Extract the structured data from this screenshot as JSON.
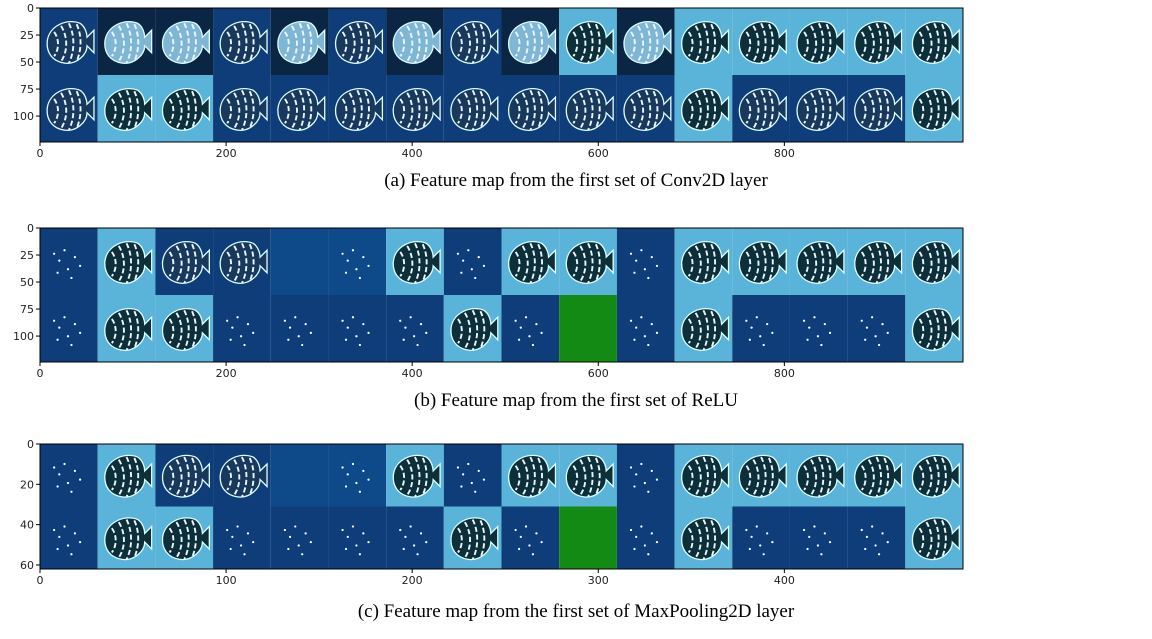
{
  "panels": [
    {
      "caption": "(a) Feature map from the first set of Conv2D layer",
      "xlim": [
        0,
        992
      ],
      "ylim": [
        124,
        0
      ],
      "xticks": [
        0,
        200,
        400,
        600,
        800
      ],
      "yticks": [
        0,
        25,
        50,
        75,
        100
      ]
    },
    {
      "caption": "(b) Feature map from the first set of ReLU",
      "xlim": [
        0,
        992
      ],
      "ylim": [
        124,
        0
      ],
      "xticks": [
        0,
        200,
        400,
        600,
        800
      ],
      "yticks": [
        0,
        25,
        50,
        75,
        100
      ]
    },
    {
      "caption": "(c) Feature map from the first set of MaxPooling2D layer",
      "xlim": [
        0,
        496
      ],
      "ylim": [
        62,
        0
      ],
      "xticks": [
        0,
        100,
        200,
        300,
        400
      ],
      "yticks": [
        0,
        20,
        40,
        60
      ]
    }
  ]
}
